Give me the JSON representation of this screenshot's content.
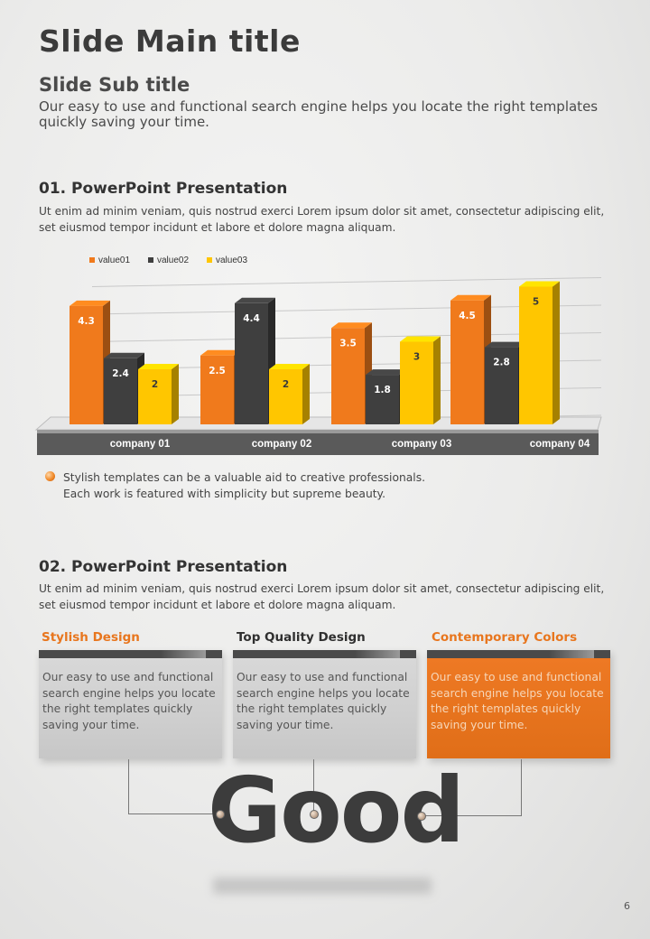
{
  "header": {
    "main_title": "Slide Main title",
    "sub_title": "Slide Sub title",
    "sub_desc": "Our easy to use and functional search engine helps you locate the right templates quickly saving your time."
  },
  "section1": {
    "title": "01. PowerPoint Presentation",
    "desc": "Ut enim ad minim veniam, quis nostrud exerci  Lorem ipsum dolor sit amet, consectetur adipiscing elit, set eiusmod tempor incidunt et labore et dolore magna aliquam.",
    "bullet_line1": "Stylish templates can be a valuable aid to creative professionals.",
    "bullet_line2": "Each work is featured with simplicity but supreme beauty."
  },
  "chart_data": {
    "type": "bar",
    "categories": [
      "company 01",
      "company 02",
      "company 03",
      "company 04"
    ],
    "series": [
      {
        "name": "value01",
        "values": [
          4.3,
          2.5,
          3.5,
          4.5
        ],
        "color": "#f07a1c"
      },
      {
        "name": "value02",
        "values": [
          2.4,
          4.4,
          1.8,
          2.8
        ],
        "color": "#3f3f3f"
      },
      {
        "name": "value03",
        "values": [
          2,
          2,
          3,
          5
        ],
        "color": "#ffc600"
      }
    ],
    "ylim": [
      0,
      5
    ],
    "legend": "top-left",
    "grid": true
  },
  "section2": {
    "title": "02. PowerPoint Presentation",
    "desc": "Ut enim ad minim veniam, quis nostrud exerci  Lorem ipsum dolor sit amet, consectetur adipiscing elit, set eiusmod tempor incidunt et labore et dolore magna aliquam.",
    "cards": [
      {
        "heading": "Stylish Design",
        "heading_color": "#e8761e",
        "body": "Our easy to use and functional search engine helps you locate the right templates quickly saving your time."
      },
      {
        "heading": "Top Quality Design",
        "heading_color": "#2f2f2f",
        "body": "Our easy to use and functional search engine helps you locate the right templates quickly saving your time."
      },
      {
        "heading": "Contemporary Colors",
        "heading_color": "#e8761e",
        "body": "Our easy to use and functional search engine helps you locate the right templates quickly saving your time."
      }
    ],
    "big_word": "Good"
  },
  "footer": {
    "page_number": "6"
  },
  "colors": {
    "accent": "#f07a1c",
    "dark": "#3f3f3f",
    "yellow": "#ffc600"
  }
}
